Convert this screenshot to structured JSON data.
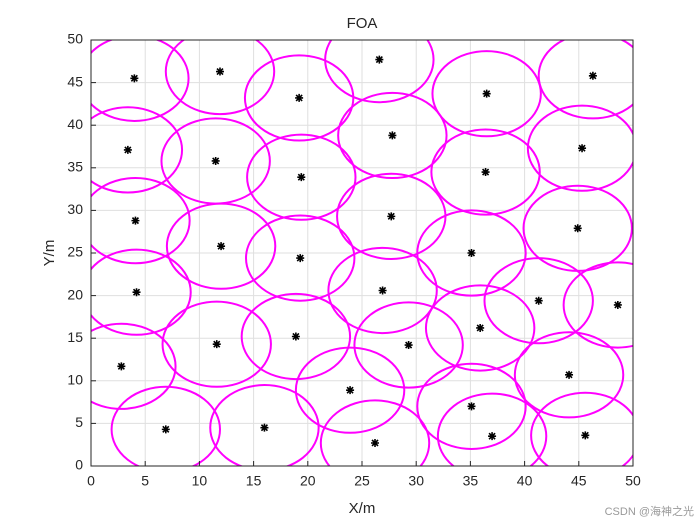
{
  "chart_data": {
    "type": "scatter",
    "title": "FOA",
    "x_label": "X/m",
    "y_label": "Y/m",
    "x": [
      4.0,
      11.9,
      19.2,
      26.6,
      36.5,
      46.3,
      3.4,
      11.5,
      19.4,
      27.8,
      36.4,
      45.3,
      4.1,
      12.0,
      19.3,
      27.7,
      35.1,
      44.9,
      4.2,
      26.9,
      41.3,
      48.6,
      11.6,
      18.9,
      29.3,
      35.9,
      2.8,
      23.9,
      44.1,
      35.1,
      6.9,
      16.0,
      26.2,
      37.0,
      45.6
    ],
    "values": [
      45.5,
      46.3,
      43.2,
      47.7,
      43.7,
      45.8,
      37.1,
      35.8,
      33.9,
      38.8,
      34.5,
      37.3,
      28.8,
      25.8,
      24.4,
      29.3,
      25.0,
      27.9,
      20.4,
      20.6,
      19.4,
      18.9,
      14.3,
      15.2,
      14.2,
      16.2,
      11.7,
      8.9,
      10.7,
      7.0,
      4.3,
      4.5,
      2.7,
      3.5,
      3.6
    ],
    "radius": 5,
    "point_color": "#000000",
    "circle_color": "#ff00ff",
    "xlim": [
      0,
      50
    ],
    "ylim": [
      0,
      50
    ],
    "xticks": [
      0,
      5,
      10,
      15,
      20,
      25,
      30,
      35,
      40,
      45,
      50
    ],
    "yticks": [
      0,
      5,
      10,
      15,
      20,
      25,
      30,
      35,
      40,
      45,
      50
    ],
    "grid": true
  },
  "watermark": "CSDN @海神之光"
}
